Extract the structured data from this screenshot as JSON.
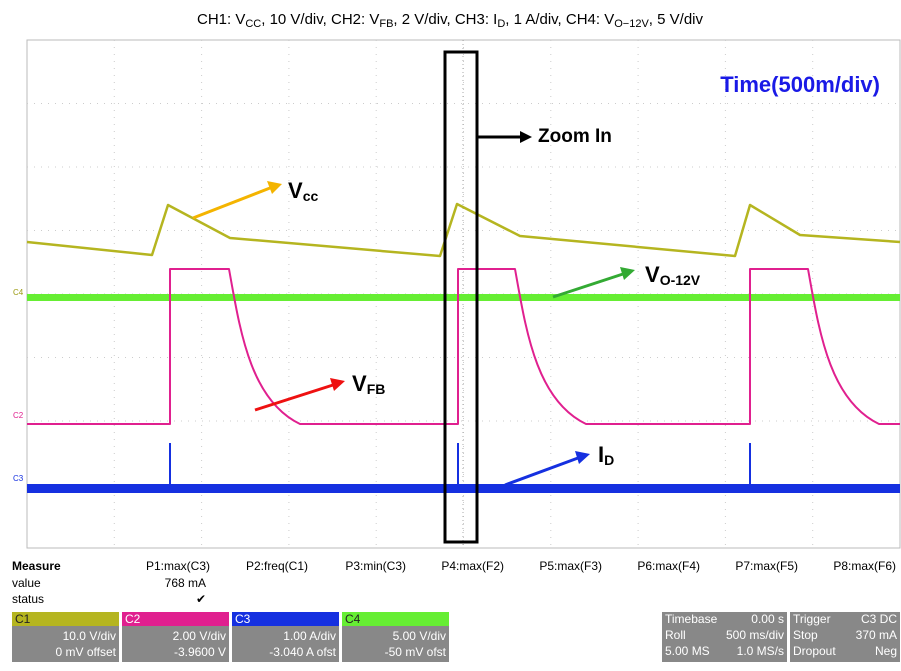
{
  "caption": {
    "segments": [
      "CH1: V",
      "CC",
      ", 10 V/div, CH2: V",
      "FB",
      ", 2 V/div, CH3: I",
      "D",
      ", 1 A/div, CH4: V",
      "O−12V",
      ", 5 V/div"
    ]
  },
  "scope": {
    "time_label": "Time(500m/div)",
    "zoom_label": "Zoom In",
    "annotations": [
      {
        "main": "V",
        "sub": "cc"
      },
      {
        "main": "V",
        "sub": "O-12V"
      },
      {
        "main": "V",
        "sub": "FB"
      },
      {
        "main": "I",
        "sub": "D"
      }
    ],
    "channel_markers": [
      "C4",
      "C2",
      "C3"
    ]
  },
  "measure": {
    "title": "Measure",
    "columns": [
      "P1:max(C3)",
      "P2:freq(C1)",
      "P3:min(C3)",
      "P4:max(F2)",
      "P5:max(F3)",
      "P6:max(F4)",
      "P7:max(F5)",
      "P8:max(F6)"
    ],
    "rows": [
      {
        "label": "value",
        "cells": [
          "768 mA"
        ]
      },
      {
        "label": "status",
        "cells": [
          "✔"
        ]
      }
    ]
  },
  "channels": [
    {
      "name": "C1",
      "scale": "10.0 V/div",
      "offset": "0 mV offset"
    },
    {
      "name": "C2",
      "scale": "2.00 V/div",
      "offset": "-3.9600 V"
    },
    {
      "name": "C3",
      "scale": "1.00 A/div",
      "offset": "-3.040 A ofst"
    },
    {
      "name": "C4",
      "scale": "5.00 V/div",
      "offset": "-50 mV ofst"
    }
  ],
  "timebase": {
    "rows": [
      [
        "Timebase",
        "0.00 s"
      ],
      [
        "Roll",
        "500 ms/div"
      ],
      [
        "5.00 MS",
        "1.0 MS/s"
      ]
    ]
  },
  "trigger": {
    "rows": [
      [
        "Trigger",
        "C3 DC"
      ],
      [
        "Stop",
        "370 mA"
      ],
      [
        "Dropout",
        "Neg"
      ]
    ]
  }
}
